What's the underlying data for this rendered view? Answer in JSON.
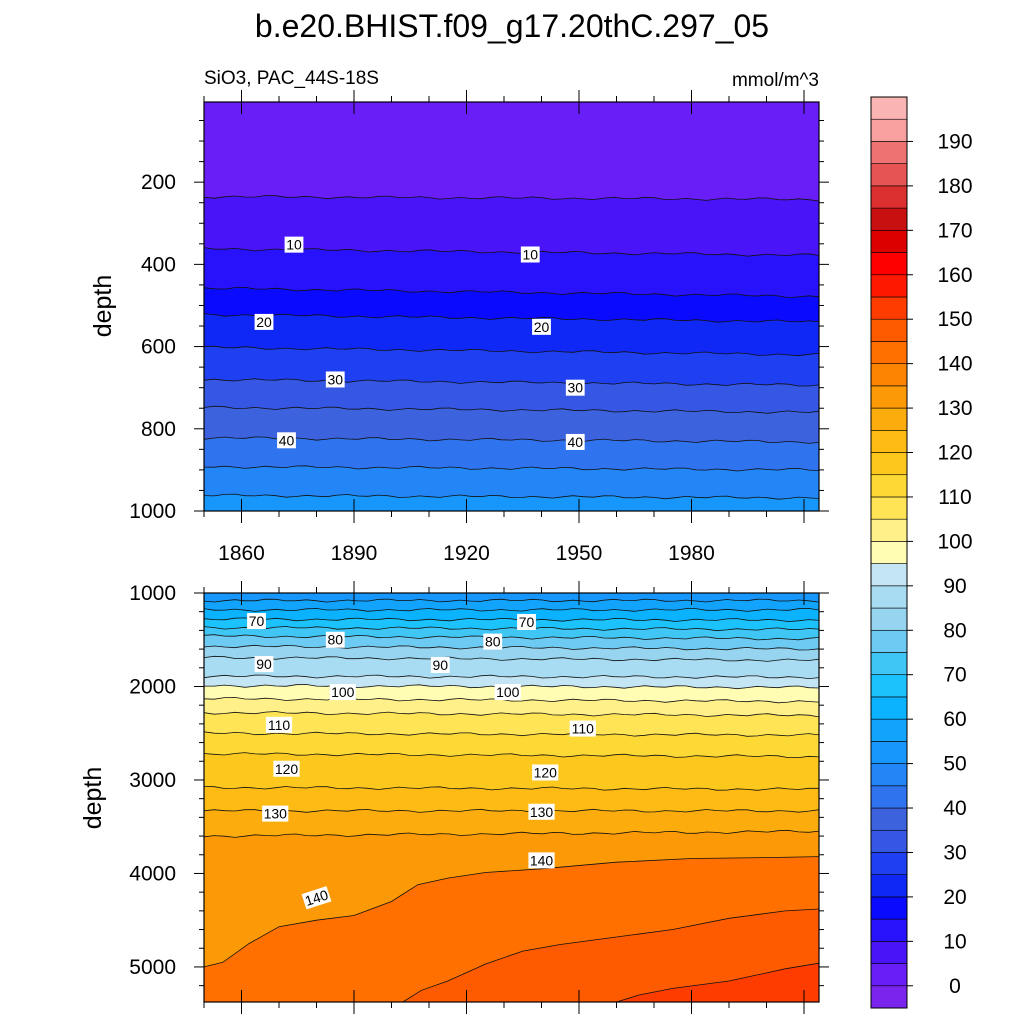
{
  "chart_data": {
    "type": "heatmap",
    "subtype": "filled-contour depth-time section",
    "title": "b.e20.BHIST.f09_g17.20thC.297_05",
    "left_string": "SiO3, PAC_44S-18S",
    "right_string": "mmol/m^3",
    "colorbar": {
      "levels": [
        0,
        5,
        10,
        15,
        20,
        25,
        30,
        35,
        40,
        45,
        50,
        55,
        60,
        65,
        70,
        75,
        80,
        85,
        90,
        95,
        100,
        105,
        110,
        115,
        120,
        125,
        130,
        135,
        140,
        145,
        150,
        155,
        160,
        165,
        170,
        175,
        180,
        185,
        190,
        195
      ],
      "tick_labels": [
        "0",
        "10",
        "20",
        "30",
        "40",
        "50",
        "60",
        "70",
        "80",
        "90",
        "100",
        "110",
        "120",
        "130",
        "140",
        "150",
        "160",
        "170",
        "180",
        "190"
      ],
      "colors": [
        "#7a24ee",
        "#6a1ef7",
        "#4a14f8",
        "#2812fb",
        "#0a0aff",
        "#1028f5",
        "#1e40f0",
        "#3656e4",
        "#3c62de",
        "#2f74ee",
        "#2286f6",
        "#1797fb",
        "#12a4fd",
        "#0bb2fe",
        "#1cc2fb",
        "#40c6f5",
        "#6ccaf3",
        "#96d4f0",
        "#a8dcf2",
        "#c4e6f4",
        "#fffcb4",
        "#fff08a",
        "#ffe456",
        "#fdd936",
        "#fcc81e",
        "#fdbb14",
        "#fcac0c",
        "#fc9906",
        "#fc8400",
        "#ff7000",
        "#fe5a00",
        "#fe3c00",
        "#fe1800",
        "#ff0000",
        "#dc0000",
        "#c81010",
        "#dc3030",
        "#e65454",
        "#ee7272",
        "#f8a0a0",
        "#fab4b4"
      ]
    },
    "panels": [
      {
        "name": "upper",
        "ylabel": "depth",
        "ylim": [
          5,
          1000
        ],
        "yaxis_inverted": true,
        "xlim": [
          1850,
          2014
        ],
        "xticks": [
          "1860",
          "1890",
          "1920",
          "1950",
          "1980"
        ],
        "yticks": [
          "200",
          "400",
          "600",
          "800",
          "1000"
        ],
        "contour_lines": [
          {
            "level": 5,
            "depth_start": 235,
            "depth_end": 242
          },
          {
            "level": 10,
            "depth_start": 362,
            "depth_end": 378
          },
          {
            "level": 15,
            "depth_start": 458,
            "depth_end": 478
          },
          {
            "level": 20,
            "depth_start": 522,
            "depth_end": 540
          },
          {
            "level": 25,
            "depth_start": 602,
            "depth_end": 620
          },
          {
            "level": 30,
            "depth_start": 680,
            "depth_end": 694
          },
          {
            "level": 35,
            "depth_start": 748,
            "depth_end": 760
          },
          {
            "level": 40,
            "depth_start": 822,
            "depth_end": 832
          },
          {
            "level": 45,
            "depth_start": 892,
            "depth_end": 900
          },
          {
            "level": 50,
            "depth_start": 962,
            "depth_end": 968
          }
        ],
        "contour_labels": [
          {
            "text": "10",
            "year": 1874,
            "depth": 352
          },
          {
            "text": "10",
            "year": 1937,
            "depth": 376
          },
          {
            "text": "20",
            "year": 1866,
            "depth": 540
          },
          {
            "text": "20",
            "year": 1940,
            "depth": 552
          },
          {
            "text": "30",
            "year": 1885,
            "depth": 680
          },
          {
            "text": "30",
            "year": 1949,
            "depth": 700
          },
          {
            "text": "40",
            "year": 1872,
            "depth": 828
          },
          {
            "text": "40",
            "year": 1949,
            "depth": 832
          }
        ]
      },
      {
        "name": "lower",
        "ylabel": "depth",
        "ylim": [
          1000,
          5375
        ],
        "yaxis_inverted": true,
        "xlim": [
          1850,
          2014
        ],
        "yticks": [
          "1000",
          "2000",
          "3000",
          "4000",
          "5000"
        ],
        "contour_lines": [
          {
            "level": 55,
            "depth_start": 1080,
            "depth_end": 1080
          },
          {
            "level": 60,
            "depth_start": 1180,
            "depth_end": 1180
          },
          {
            "level": 65,
            "depth_start": 1280,
            "depth_end": 1290
          },
          {
            "level": 70,
            "depth_start": 1370,
            "depth_end": 1390
          },
          {
            "level": 75,
            "depth_start": 1460,
            "depth_end": 1490
          },
          {
            "level": 80,
            "depth_start": 1570,
            "depth_end": 1600
          },
          {
            "level": 85,
            "depth_start": 1690,
            "depth_end": 1720
          },
          {
            "level": 90,
            "depth_start": 1890,
            "depth_end": 1900
          },
          {
            "level": 95,
            "depth_start": 1990,
            "depth_end": 2010
          },
          {
            "level": 100,
            "depth_start": 2130,
            "depth_end": 2160
          },
          {
            "level": 105,
            "depth_start": 2280,
            "depth_end": 2310
          },
          {
            "level": 110,
            "depth_start": 2500,
            "depth_end": 2520
          },
          {
            "level": 115,
            "depth_start": 2720,
            "depth_end": 2750
          },
          {
            "level": 120,
            "depth_start": 3080,
            "depth_end": 3100
          },
          {
            "level": 125,
            "depth_start": 3330,
            "depth_end": 3330
          },
          {
            "level": 130,
            "depth_start": 3600,
            "depth_end": 3550
          }
        ],
        "contour_140": [
          [
            1850,
            5000
          ],
          [
            1855,
            4950
          ],
          [
            1862,
            4750
          ],
          [
            1870,
            4570
          ],
          [
            1880,
            4500
          ],
          [
            1890,
            4450
          ],
          [
            1900,
            4300
          ],
          [
            1907,
            4120
          ],
          [
            1915,
            4050
          ],
          [
            1925,
            3990
          ],
          [
            1940,
            3950
          ],
          [
            1960,
            3880
          ],
          [
            1980,
            3840
          ],
          [
            2000,
            3830
          ],
          [
            2014,
            3820
          ]
        ],
        "contour_145": [
          [
            1903,
            5375
          ],
          [
            1908,
            5250
          ],
          [
            1915,
            5150
          ],
          [
            1925,
            4970
          ],
          [
            1935,
            4830
          ],
          [
            1945,
            4760
          ],
          [
            1960,
            4680
          ],
          [
            1975,
            4600
          ],
          [
            1990,
            4480
          ],
          [
            2005,
            4400
          ],
          [
            2014,
            4380
          ]
        ],
        "contour_150": [
          [
            1960,
            5375
          ],
          [
            1966,
            5300
          ],
          [
            1975,
            5230
          ],
          [
            1990,
            5150
          ],
          [
            2005,
            5020
          ],
          [
            2014,
            4960
          ]
        ],
        "contour_labels": [
          {
            "text": "70",
            "year": 1864,
            "depth": 1300
          },
          {
            "text": "70",
            "year": 1936,
            "depth": 1310
          },
          {
            "text": "80",
            "year": 1885,
            "depth": 1500
          },
          {
            "text": "80",
            "year": 1927,
            "depth": 1520
          },
          {
            "text": "90",
            "year": 1866,
            "depth": 1760
          },
          {
            "text": "90",
            "year": 1913,
            "depth": 1770
          },
          {
            "text": "100",
            "year": 1887,
            "depth": 2060
          },
          {
            "text": "100",
            "year": 1931,
            "depth": 2060
          },
          {
            "text": "110",
            "year": 1870,
            "depth": 2410
          },
          {
            "text": "110",
            "year": 1951,
            "depth": 2450
          },
          {
            "text": "120",
            "year": 1872,
            "depth": 2880
          },
          {
            "text": "120",
            "year": 1941,
            "depth": 2920
          },
          {
            "text": "130",
            "year": 1869,
            "depth": 3360
          },
          {
            "text": "130",
            "year": 1940,
            "depth": 3340
          },
          {
            "text": "140",
            "year": 1880,
            "depth": 4260
          },
          {
            "text": "140",
            "year": 1940,
            "depth": 3860
          }
        ]
      }
    ]
  }
}
